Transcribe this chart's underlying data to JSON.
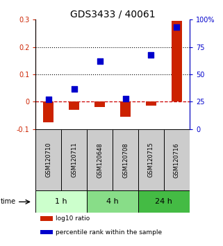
{
  "title": "GDS3433 / 40061",
  "samples": [
    "GSM120710",
    "GSM120711",
    "GSM120648",
    "GSM120708",
    "GSM120715",
    "GSM120716"
  ],
  "log10_ratio": [
    -0.075,
    -0.03,
    -0.02,
    -0.055,
    -0.015,
    0.295
  ],
  "percentile_rank": [
    0.27,
    0.37,
    0.62,
    0.28,
    0.68,
    0.93
  ],
  "left_ylim": [
    -0.1,
    0.3
  ],
  "right_ylim": [
    0,
    1.0
  ],
  "left_yticks": [
    -0.1,
    0.0,
    0.1,
    0.2,
    0.3
  ],
  "right_yticks": [
    0.0,
    0.25,
    0.5,
    0.75,
    1.0
  ],
  "right_yticklabels": [
    "0",
    "25",
    "50",
    "75",
    "100%"
  ],
  "left_yticklabels": [
    "-0.1",
    "0",
    "0.1",
    "0.2",
    "0.3"
  ],
  "hlines": [
    0.1,
    0.2
  ],
  "bar_color": "#cc2200",
  "dot_color": "#0000cc",
  "bar_width": 0.4,
  "dot_size": 30,
  "time_groups": [
    {
      "label": "1 h",
      "samples": [
        0,
        1
      ],
      "color": "#ccffcc"
    },
    {
      "label": "4 h",
      "samples": [
        2,
        3
      ],
      "color": "#88dd88"
    },
    {
      "label": "24 h",
      "samples": [
        4,
        5
      ],
      "color": "#44bb44"
    }
  ],
  "sample_box_color": "#cccccc",
  "legend_items": [
    {
      "label": "log10 ratio",
      "color": "#cc2200"
    },
    {
      "label": "percentile rank within the sample",
      "color": "#0000cc"
    }
  ],
  "title_fontsize": 10,
  "tick_fontsize": 7,
  "zero_line_color": "#cc0000",
  "zero_line_style": "--"
}
